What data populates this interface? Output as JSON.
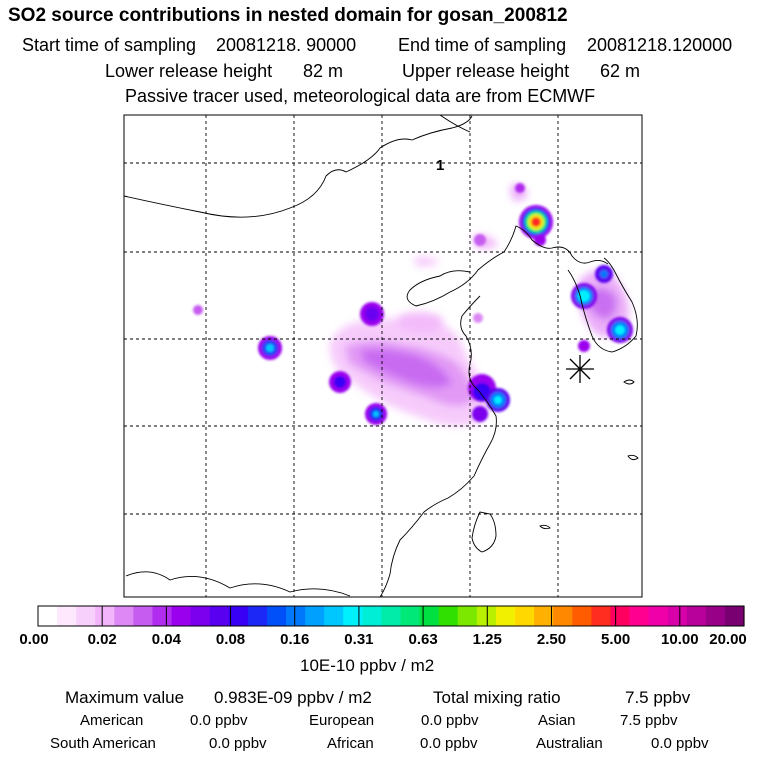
{
  "title": "SO2 source contributions in nested domain for gosan_200812",
  "sampling": {
    "start_label": "Start time of sampling",
    "start_value": "20081218. 90000",
    "end_label": "End time of sampling",
    "end_value": "20081218.120000"
  },
  "release": {
    "lower_label": "Lower release height",
    "lower_value": "82 m",
    "upper_label": "Upper release height",
    "upper_value": "62 m"
  },
  "note": "Passive tracer used, meteorological data are from ECMWF",
  "map": {
    "region_label": "1",
    "receptor_marker": "asterisk-icon"
  },
  "colorbar": {
    "labels": [
      "0.00",
      "0.02",
      "0.04",
      "0.08",
      "0.16",
      "0.31",
      "0.63",
      "1.25",
      "2.50",
      "5.00",
      "10.00",
      "20.00"
    ],
    "colors": [
      "#ffffff",
      "#fde8fe",
      "#f8d0fc",
      "#f2b4fa",
      "#dd88f4",
      "#c65cf0",
      "#b02cee",
      "#9a00ee",
      "#7c00ee",
      "#5a00f0",
      "#3800f4",
      "#1c28f6",
      "#0050fa",
      "#0078fc",
      "#00a0fe",
      "#00c8fe",
      "#00f0fe",
      "#00eed6",
      "#00eca8",
      "#00e878",
      "#00e040",
      "#30e000",
      "#7ce800",
      "#b8f000",
      "#f0f000",
      "#ffd800",
      "#ffb000",
      "#ff8800",
      "#ff5c00",
      "#ff2c20",
      "#ff0060",
      "#ff0090",
      "#f000a8",
      "#d800a8",
      "#b8009a",
      "#980088",
      "#780070"
    ]
  },
  "units": "10E-10 ppbv / m2",
  "summary": {
    "max_label": "Maximum value",
    "max_value": "0.983E-09 ppbv / m2",
    "total_label": "Total mixing ratio",
    "total_value": "7.5 ppbv"
  },
  "sources": [
    {
      "name": "American",
      "value": "0.0 ppbv"
    },
    {
      "name": "European",
      "value": "0.0 ppbv"
    },
    {
      "name": "Asian",
      "value": "7.5 ppbv"
    },
    {
      "name": "South American",
      "value": "0.0 ppbv"
    },
    {
      "name": "African",
      "value": "0.0 ppbv"
    },
    {
      "name": "Australian",
      "value": "0.0 ppbv"
    }
  ]
}
